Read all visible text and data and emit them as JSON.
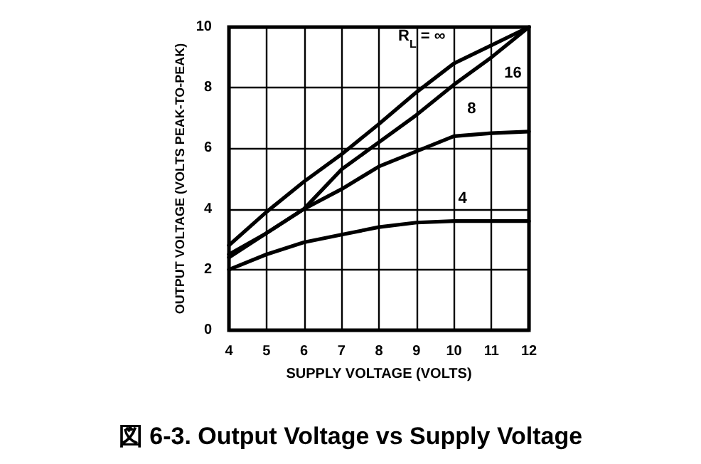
{
  "chart_data": {
    "type": "line",
    "title": "図 6-3. Output Voltage vs Supply Voltage",
    "xlabel": "SUPPLY VOLTAGE (VOLTS)",
    "ylabel": "OUTPUT VOLTAGE (VOLTS PEAK-TO-PEAK)",
    "x": [
      4,
      5,
      6,
      7,
      8,
      9,
      10,
      11,
      12
    ],
    "series": [
      {
        "name": "R$_{L}$ = ∞",
        "color": "#000000",
        "values": [
          2.8,
          3.9,
          4.9,
          5.8,
          6.8,
          7.85,
          8.8,
          9.4,
          10
        ]
      },
      {
        "name": "16",
        "color": "#000000",
        "values": [
          2.5,
          3.2,
          4.0,
          5.3,
          6.2,
          7.1,
          8.1,
          9.0,
          10
        ]
      },
      {
        "name": "8",
        "color": "#000000",
        "values": [
          2.4,
          3.2,
          4.0,
          4.65,
          5.4,
          5.9,
          6.4,
          6.5,
          6.55
        ]
      },
      {
        "name": "4",
        "color": "#000000",
        "values": [
          2.0,
          2.5,
          2.9,
          3.15,
          3.4,
          3.55,
          3.6,
          3.6,
          3.6
        ]
      }
    ],
    "xlim": [
      4,
      12
    ],
    "xticks": [
      4,
      5,
      6,
      7,
      8,
      9,
      10,
      11,
      12
    ],
    "ylim": [
      0,
      10
    ],
    "yticks": [
      0,
      2,
      4,
      6,
      8,
      10
    ],
    "grid": true,
    "legend": false,
    "marker": "none",
    "line_style": "solid"
  }
}
